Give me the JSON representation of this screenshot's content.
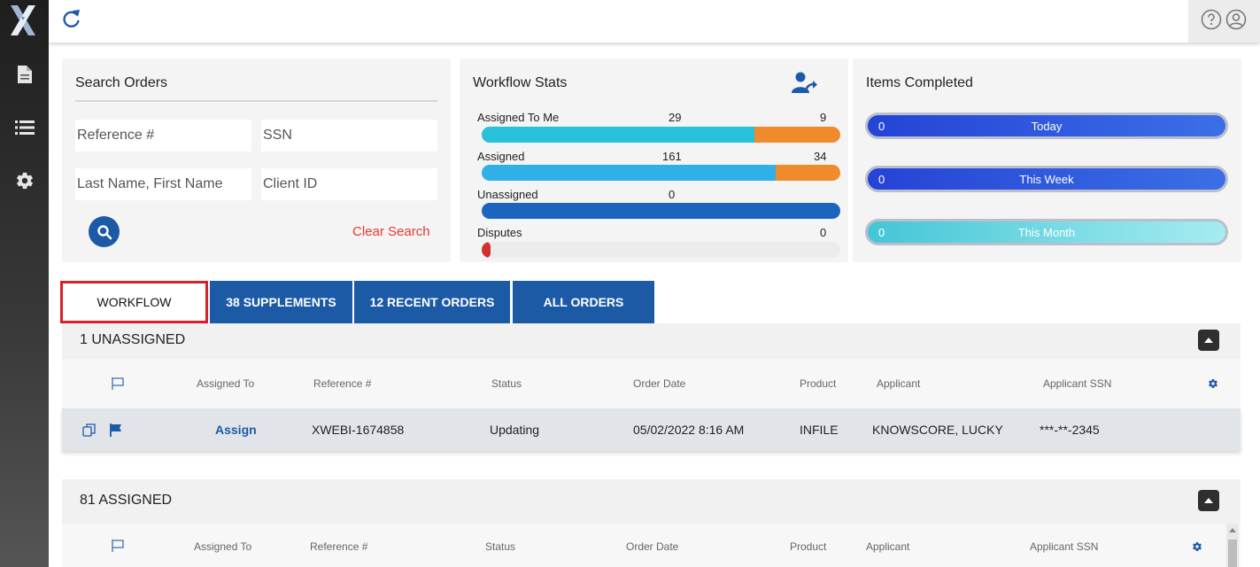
{
  "nav": {
    "logo": "X",
    "items": [
      {
        "icon": "document-icon"
      },
      {
        "icon": "list-icon"
      },
      {
        "icon": "gear-icon"
      }
    ]
  },
  "topbar": {
    "icons": [
      "refresh-icon",
      "help-icon",
      "user-icon"
    ]
  },
  "search": {
    "title": "Search Orders",
    "reference_placeholder": "Reference #",
    "ssn_placeholder": "SSN",
    "name_placeholder": "Last Name, First Name",
    "client_placeholder": "Client ID",
    "clear_label": "Clear Search"
  },
  "workflow_stats": {
    "title": "Workflow Stats",
    "rows": [
      {
        "label": "Assigned To Me",
        "value1": "29",
        "value2": "9",
        "fill_primary": 0.76,
        "fill_secondary": 0.24
      },
      {
        "label": "Assigned",
        "value1": "161",
        "value2": "34",
        "fill_primary": 0.82,
        "fill_secondary": 0.18
      },
      {
        "label": "Unassigned",
        "value1": "0",
        "value2": "",
        "fill_primary": 1.0,
        "fill_secondary": 0
      },
      {
        "label": "Disputes",
        "value1": "",
        "value2": "0",
        "fill_primary": 0.02,
        "fill_secondary": 0
      }
    ]
  },
  "items_completed": {
    "title": "Items Completed",
    "rows": [
      {
        "count": "0",
        "label": "Today"
      },
      {
        "count": "0",
        "label": "This Week"
      },
      {
        "count": "0",
        "label": "This Month"
      }
    ]
  },
  "tabs": [
    {
      "label": "WORKFLOW",
      "active": true
    },
    {
      "label": "38 SUPPLEMENTS",
      "active": false
    },
    {
      "label": "12 RECENT ORDERS",
      "active": false
    },
    {
      "label": "ALL ORDERS",
      "active": false
    }
  ],
  "table_headers": [
    "Assigned To",
    "Reference #",
    "Status",
    "Order Date",
    "Product",
    "Applicant",
    "Applicant SSN"
  ],
  "unassigned": {
    "title": "1 UNASSIGNED",
    "rows": [
      {
        "assigned_to": "Assign",
        "reference": "XWEBI-1674858",
        "status": "Updating",
        "order_date": "05/02/2022 8:16 AM",
        "product": "INFILE",
        "applicant": "KNOWSCORE, LUCKY",
        "ssn": "***-**-2345"
      }
    ]
  },
  "assigned": {
    "title": "81 ASSIGNED"
  },
  "colors": {
    "primary": "#1d5aa6",
    "accent_orange": "#ef8b2c",
    "cyan": "#29c0dc",
    "danger": "#d8202a"
  }
}
